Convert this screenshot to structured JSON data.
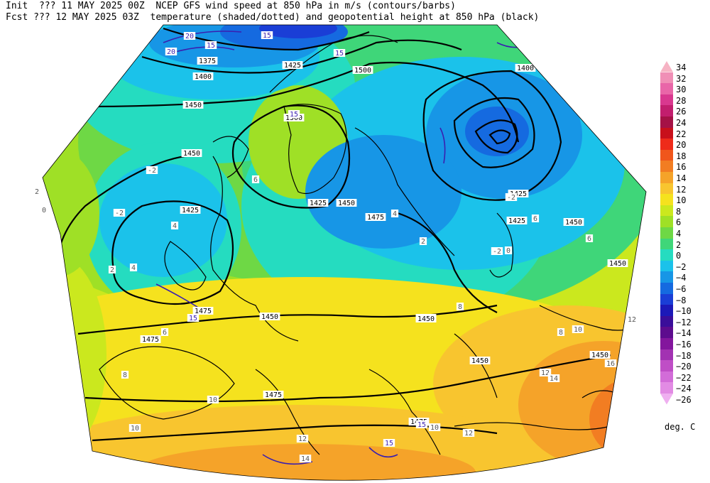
{
  "header": {
    "line1": "Init  ??? 11 MAY 2025 00Z  NCEP GFS wind speed at 850 hPa in m/s (contours/barbs)",
    "line2": "Fcst ??? 12 MAY 2025 03Z  temperature (shaded/dotted) and geopotential height at 850 hPa (black)"
  },
  "colorbar": {
    "unit": "deg. C",
    "levels": [
      {
        "label": "34",
        "color": "#f6b3c4"
      },
      {
        "label": "32",
        "color": "#f08fb6"
      },
      {
        "label": "30",
        "color": "#e966a8"
      },
      {
        "label": "28",
        "color": "#d9388f"
      },
      {
        "label": "26",
        "color": "#c21e6e"
      },
      {
        "label": "24",
        "color": "#a51246"
      },
      {
        "label": "22",
        "color": "#c8101b"
      },
      {
        "label": "20",
        "color": "#ee2b1a"
      },
      {
        "label": "18",
        "color": "#f0561c"
      },
      {
        "label": "16",
        "color": "#f27d22"
      },
      {
        "label": "14",
        "color": "#f5a329"
      },
      {
        "label": "12",
        "color": "#f8c52f"
      },
      {
        "label": "10",
        "color": "#f5e21e"
      },
      {
        "label": "8",
        "color": "#cbe81e"
      },
      {
        "label": "6",
        "color": "#9fe026"
      },
      {
        "label": "4",
        "color": "#6ed845"
      },
      {
        "label": "2",
        "color": "#3fd679"
      },
      {
        "label": "0",
        "color": "#25dcc0"
      },
      {
        "label": "−2",
        "color": "#1bc2ea"
      },
      {
        "label": "−4",
        "color": "#1796e6"
      },
      {
        "label": "−6",
        "color": "#156ae0"
      },
      {
        "label": "−8",
        "color": "#1a3ed6"
      },
      {
        "label": "−10",
        "color": "#1c19b8"
      },
      {
        "label": "−12",
        "color": "#3a0e9a"
      },
      {
        "label": "−14",
        "color": "#5d0c8e"
      },
      {
        "label": "−16",
        "color": "#83169d"
      },
      {
        "label": "−18",
        "color": "#a232b2"
      },
      {
        "label": "−20",
        "color": "#bf4ec6"
      },
      {
        "label": "−22",
        "color": "#d26cd8"
      },
      {
        "label": "−24",
        "color": "#e28be4"
      },
      {
        "label": "−26",
        "color": "#efaff0"
      }
    ]
  },
  "map": {
    "height_labels": [
      "1425",
      "1450",
      "1450",
      "1450",
      "1425",
      "1450",
      "1475",
      "1475",
      "1475",
      "1450",
      "1475",
      "1500",
      "1500",
      "1425",
      "1450",
      "1450",
      "1450",
      "1475",
      "1400",
      "1375",
      "1425",
      "1400",
      "1425",
      "1475",
      "1450"
    ],
    "wind_labels": [
      "15",
      "15",
      "20",
      "20",
      "15",
      "15",
      "15",
      "15",
      "15"
    ],
    "temp_labels": [
      "2",
      "0",
      "-2",
      "-2",
      "4",
      "2",
      "4",
      "6",
      "4",
      "-2",
      "-2",
      "0",
      "2",
      "6",
      "8",
      "10",
      "12",
      "14",
      "16",
      "12",
      "10",
      "8",
      "6",
      "10",
      "12",
      "14",
      "10",
      "12",
      "6",
      "8"
    ]
  }
}
